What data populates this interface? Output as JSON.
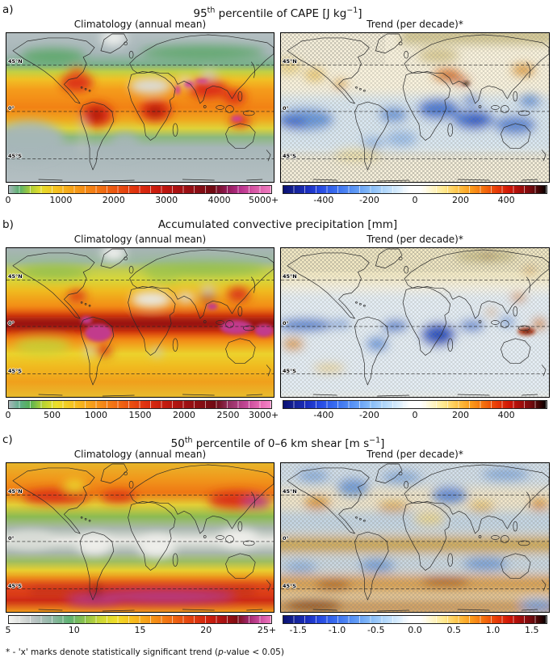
{
  "map_labels": {
    "lat": [
      "45°N",
      "0°",
      "45°S"
    ]
  },
  "footnote_segments": [
    {
      "t": "* - 'x' marks denote statistically significant trend ("
    },
    {
      "t": "p",
      "italic": true
    },
    {
      "t": "-value < 0.05)"
    }
  ],
  "palettes": {
    "clim_cape": [
      "#a9b7ba 0%",
      "#57b06b 4%",
      "#a8cc3a 8%",
      "#e3de2e 12%",
      "#f6c220 18%",
      "#f69d18 25%",
      "#f37a13 33%",
      "#ea5210 41%",
      "#dc2b0e 50%",
      "#c4170e 58%",
      "#a31013 66%",
      "#850d14 73%",
      "#6e0a12 78%",
      "#8f1a55 83%",
      "#b5308a 88%",
      "#d554a3 93%",
      "#f07dc0 100%"
    ],
    "clim_precip": [
      "#a9b7ba 0%",
      "#5fae8a 4%",
      "#55b054 8%",
      "#b7d433 13%",
      "#ecdf2b 18%",
      "#f6bb1e 26%",
      "#f6921a 34%",
      "#ef6212 43%",
      "#e03210 52%",
      "#c11a0e 60%",
      "#9c1012 68%",
      "#7e0c13 75%",
      "#6e0a14 79%",
      "#943163 84%",
      "#c04594 90%",
      "#e86ab4 96%",
      "#f585c8 100%"
    ],
    "clim_shear": [
      "#f5f5f3 0%",
      "#d9dcd9 5%",
      "#b9c3c2 10%",
      "#93b8a8 16%",
      "#5fb273 23%",
      "#8cc24a 29%",
      "#cdd835 35%",
      "#f0dd28 41%",
      "#f7b81d 48%",
      "#f59217 55%",
      "#f06b12 62%",
      "#e4420f 69%",
      "#cf200d 76%",
      "#a81113 82%",
      "#7e0c13 87%",
      "#9c2566 91%",
      "#c64597 95%",
      "#ef77bf 100%"
    ],
    "trend": [
      "#0a1172 0%",
      "#16249c 5%",
      "#1a2dbe 9%",
      "#274ae3 14%",
      "#3a6ef0 20%",
      "#5b96f5 27%",
      "#85bbf8 33%",
      "#b5d9fb 39%",
      "#dceefd 44%",
      "#ffffff 48%",
      "#ffffff 52%",
      "#fff7d1 56%",
      "#ffe98f 61%",
      "#fdc54a 66%",
      "#fb9d1c 71%",
      "#f4700d 76%",
      "#e83c08 81%",
      "#cf1507 86%",
      "#a30d0b 90%",
      "#760a0e 94%",
      "#420505 97%",
      "#000000 100%"
    ]
  },
  "chart_data": {
    "type": "heatmap",
    "projection": "Six global equirectangular maps (~75°N to 65°S), 3 rows x 2 columns; dashed latitude lines at 45°N, 0°, 45°S",
    "footnote": "* - 'x' marks denote statistically significant trend (p-value < 0.05)",
    "rows": [
      {
        "panel_label": "a)",
        "title_plain": "95th percentile of CAPE [J kg-1]",
        "title_segments": [
          {
            "t": "95"
          },
          {
            "t": "th",
            "sup": true
          },
          {
            "t": " percentile of CAPE [J kg"
          },
          {
            "t": "−1",
            "sup": true
          },
          {
            "t": "]"
          }
        ],
        "left": {
          "title": "Climatology (annual mean)",
          "cbar": {
            "palette": "clim_cape",
            "min": 0,
            "max": 5000,
            "ticks": [
              {
                "v": 0,
                "label": "0"
              },
              {
                "v": 1000,
                "label": "1000"
              },
              {
                "v": 2000,
                "label": "2000"
              },
              {
                "v": 3000,
                "label": "3000"
              },
              {
                "v": 4000,
                "label": "4000"
              },
              {
                "v": 5000,
                "label": "5000+"
              }
            ]
          },
          "pattern_summary": "Gray at high latitudes; broad yellow-orange-red maxima through the tropics; deepest reds over the Caribbean, Amazon, central Africa and South/Southeast Asia; magenta extremes (>5000) along the Persian Gulf, Red Sea, north India and northern Australia; pale gray over the Sahara, Arabia, Tibet and Greenland."
        },
        "right": {
          "title": "Trend (per decade)*",
          "cbar": {
            "palette": "trend",
            "min": -580,
            "max": 580,
            "ticks": [
              {
                "v": -400,
                "label": "-400"
              },
              {
                "v": -200,
                "label": "-200"
              },
              {
                "v": 0,
                "label": "0"
              },
              {
                "v": 200,
                "label": "200"
              },
              {
                "v": 400,
                "label": "400"
              }
            ]
          },
          "pattern_summary": "Predominantly negative (blue) trends over tropical oceans, strongest across the equatorial Pacific, Indian Ocean and Maritime Continent; strong positive (red, locally near-black) trends over the Mediterranean, Middle East and Iran; scattered positive patches over western North America and northeast Asia; 'x' stippling where significant."
        }
      },
      {
        "panel_label": "b)",
        "title_plain": "Accumulated convective precipitation [mm]",
        "title_segments": [
          {
            "t": "Accumulated convective precipitation [mm]"
          }
        ],
        "left": {
          "title": "Climatology (annual mean)",
          "cbar": {
            "palette": "clim_precip",
            "min": 0,
            "max": 3000,
            "ticks": [
              {
                "v": 0,
                "label": "0"
              },
              {
                "v": 500,
                "label": "500"
              },
              {
                "v": 1000,
                "label": "1000"
              },
              {
                "v": 1500,
                "label": "1500"
              },
              {
                "v": 2000,
                "label": "2000"
              },
              {
                "v": 2500,
                "label": "2500"
              },
              {
                "v": 3000,
                "label": "3000+"
              }
            ]
          },
          "pattern_summary": "Dark-red/magenta maxima along the ITCZ, Amazon, Congo and Maritime Continent; yellow-orange midlatitude storm tracks; gray/white minima over the Sahara, Arabia, Tibet, Atacama and Greenland; greens over boreal land."
        },
        "right": {
          "title": "Trend (per decade)*",
          "cbar": {
            "palette": "trend",
            "min": -580,
            "max": 580,
            "ticks": [
              {
                "v": -400,
                "label": "-400"
              },
              {
                "v": -200,
                "label": "-200"
              },
              {
                "v": 0,
                "label": "0"
              },
              {
                "v": 200,
                "label": "200"
              },
              {
                "v": 400,
                "label": "400"
              }
            ]
          },
          "pattern_summary": "Mostly weak negative (pale blue) trends; pronounced drying (dark blue) over equatorial Africa and the equatorial Pacific/Atlantic; strong positive (dark red) trend near New Guinea and the western Pacific; olive/brown patches over Siberia; 'x' stippling where significant."
        }
      },
      {
        "panel_label": "c)",
        "title_plain": "50th percentile of 0–6 km shear [m s-1]",
        "title_segments": [
          {
            "t": "50"
          },
          {
            "t": "th",
            "sup": true
          },
          {
            "t": " percentile of 0–6 km shear [m s"
          },
          {
            "t": "−1",
            "sup": true
          },
          {
            "t": "]"
          }
        ],
        "left": {
          "title": "Climatology (annual mean)",
          "cbar": {
            "palette": "clim_shear",
            "min": 5,
            "max": 25,
            "ticks": [
              {
                "v": 5,
                "label": "5"
              },
              {
                "v": 10,
                "label": "10"
              },
              {
                "v": 15,
                "label": "15"
              },
              {
                "v": 20,
                "label": "20"
              },
              {
                "v": 25,
                "label": "25+"
              }
            ]
          },
          "pattern_summary": "Shear minima (white/gray, ~5) along the deep tropics; green transition bands; maxima (red to magenta, >20) in the midlatitude jets — North America/North Atlantic, the East Asian-Pacific jet and the Southern Ocean storm track; orange bands poleward."
        },
        "right": {
          "title": "Trend (per decade)*",
          "cbar": {
            "palette": "trend",
            "min": -1.7,
            "max": 1.7,
            "ticks": [
              {
                "v": -1.5,
                "label": "-1.5"
              },
              {
                "v": -1.0,
                "label": "-1.0"
              },
              {
                "v": -0.5,
                "label": "-0.5"
              },
              {
                "v": 0,
                "label": "0.0"
              },
              {
                "v": 0.5,
                "label": "0.5"
              },
              {
                "v": 1.0,
                "label": "1.0"
              },
              {
                "v": 1.5,
                "label": "1.5"
              }
            ]
          },
          "pattern_summary": "Banded alternating trends: positive (orange/brown) along the deep tropics, southern midlatitudes and far south, negative (blue) in the subtropics, over eastern Europe/Russia and around 50-60°N/S; dense 'x' stippling in tropical and southern bands."
        }
      }
    ]
  }
}
